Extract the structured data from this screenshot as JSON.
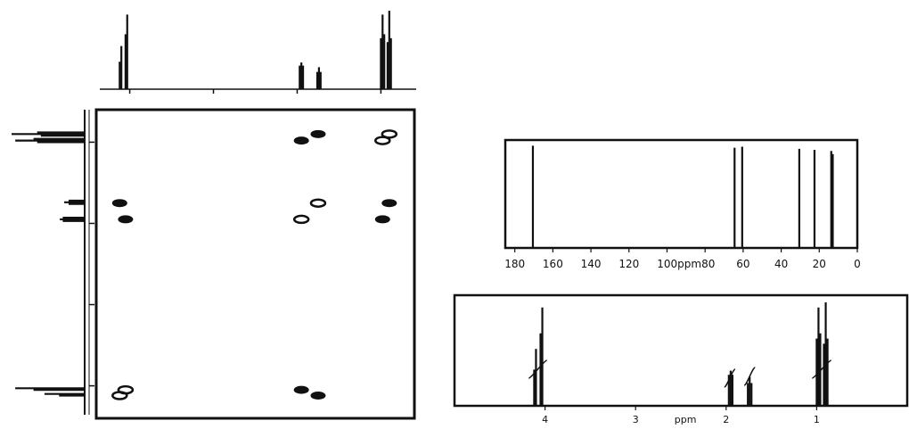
{
  "chart_data": [
    {
      "type": "heatmap",
      "subtype": "2D COSY contour plot",
      "xlabel": "ppm",
      "ylabel": "",
      "xlim": [
        0.6,
        4.4
      ],
      "ylim": [
        0.6,
        4.4
      ],
      "x_ticks": [
        4,
        3,
        2,
        1
      ],
      "y_ticks": [
        1,
        2,
        3,
        4
      ],
      "diagonal_peaks": [
        [
          4.12,
          4.12
        ],
        [
          4.05,
          4.05
        ],
        [
          1.95,
          1.95
        ],
        [
          1.75,
          1.75
        ],
        [
          0.98,
          0.98
        ],
        [
          0.9,
          0.9
        ]
      ],
      "cross_peaks": [
        [
          1.95,
          0.98
        ],
        [
          1.75,
          0.9
        ],
        [
          0.98,
          1.95
        ],
        [
          0.9,
          1.75
        ],
        [
          4.05,
          1.95
        ],
        [
          4.12,
          1.75
        ],
        [
          1.95,
          4.05
        ],
        [
          1.75,
          4.12
        ]
      ]
    },
    {
      "type": "line",
      "subtype": "13C NMR spectrum",
      "xlabel": "ppm",
      "xlim": [
        185,
        0
      ],
      "x_ticks": [
        180,
        160,
        140,
        120,
        100,
        80,
        60,
        40,
        20,
        0
      ],
      "peaks": [
        {
          "ppm": 170.5,
          "height": 0.98
        },
        {
          "ppm": 64.5,
          "height": 0.96
        },
        {
          "ppm": 60.5,
          "height": 0.97
        },
        {
          "ppm": 30.5,
          "height": 0.95
        },
        {
          "ppm": 22.5,
          "height": 0.94
        },
        {
          "ppm": 13.7,
          "height": 0.93
        },
        {
          "ppm": 12.9,
          "height": 0.9
        }
      ]
    },
    {
      "type": "line",
      "subtype": "1H NMR spectrum",
      "xlabel": "ppm",
      "xlim": [
        5,
        0
      ],
      "x_ticks": [
        4,
        3,
        2,
        1
      ],
      "peaks": [
        {
          "ppm": 4.12,
          "height": 0.35
        },
        {
          "ppm": 4.1,
          "height": 0.55
        },
        {
          "ppm": 4.05,
          "height": 0.7
        },
        {
          "ppm": 4.03,
          "height": 0.95
        },
        {
          "ppm": 1.97,
          "height": 0.3
        },
        {
          "ppm": 1.95,
          "height": 0.34
        },
        {
          "ppm": 1.93,
          "height": 0.3
        },
        {
          "ppm": 1.76,
          "height": 0.22
        },
        {
          "ppm": 1.74,
          "height": 0.28
        },
        {
          "ppm": 1.72,
          "height": 0.22
        },
        {
          "ppm": 1.0,
          "height": 0.65
        },
        {
          "ppm": 0.98,
          "height": 0.95
        },
        {
          "ppm": 0.96,
          "height": 0.7
        },
        {
          "ppm": 0.92,
          "height": 0.6
        },
        {
          "ppm": 0.9,
          "height": 1.0
        },
        {
          "ppm": 0.88,
          "height": 0.65
        }
      ]
    }
  ],
  "labels": {
    "c13_axis_labels": [
      "180",
      "160",
      "140",
      "120",
      "100ppm80",
      "60",
      "40",
      "20",
      "0"
    ],
    "h1_axis_labels": [
      "4",
      "3",
      "ppm",
      "2",
      "1"
    ]
  }
}
